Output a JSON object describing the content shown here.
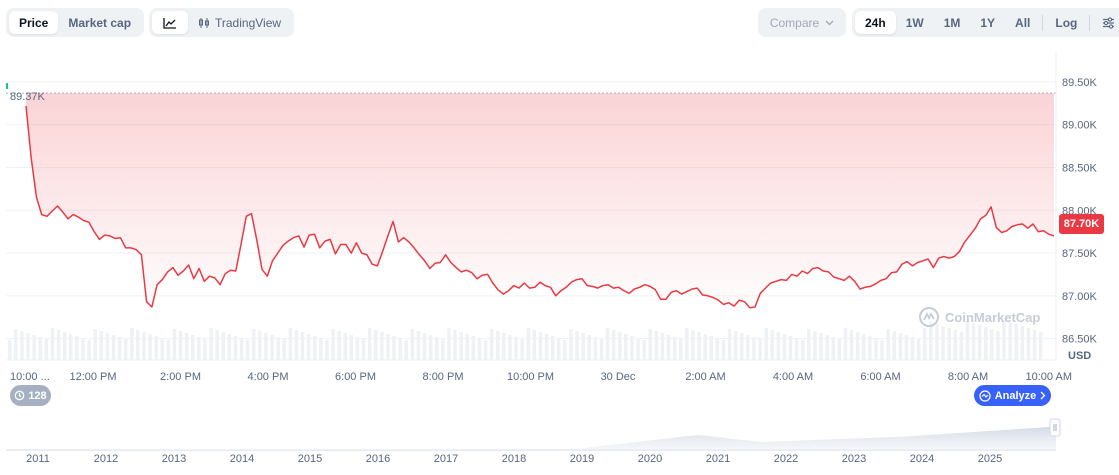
{
  "toolbar": {
    "type_options": [
      {
        "label": "Price",
        "active": true
      },
      {
        "label": "Market cap",
        "active": false
      }
    ],
    "view_options": {
      "line_icon": "line-chart-icon",
      "tradingview_icon": "candlestick-icon",
      "tradingview_label": "TradingView"
    },
    "compare_label": "Compare",
    "ranges": [
      "24h",
      "1W",
      "1M",
      "1Y",
      "All"
    ],
    "active_range": "24h",
    "log_label": "Log",
    "settings_icon": "sliders-icon"
  },
  "chart_data": {
    "type": "area",
    "x_labels": [
      "10:00 ...",
      "12:00 PM",
      "2:00 PM",
      "4:00 PM",
      "6:00 PM",
      "8:00 PM",
      "10:00 PM",
      "30 Dec",
      "2:00 AM",
      "4:00 AM",
      "6:00 AM",
      "8:00 AM",
      "10:00 AM"
    ],
    "y_ticks": [
      "89.50K",
      "89.00K",
      "88.50K",
      "88.00K",
      "87.50K",
      "87.00K",
      "86.50K"
    ],
    "y_tick_values": [
      89500,
      89000,
      88500,
      88000,
      87500,
      87000,
      86500
    ],
    "ylim": [
      86250,
      89850
    ],
    "unit": "USD",
    "open_label": "89.37K",
    "open_value": 89370,
    "current_label": "87.70K",
    "current_value": 87700,
    "series": [
      {
        "color": "#ea3943",
        "values": [
          89220,
          88610,
          88150,
          87950,
          87930,
          87990,
          88050,
          87980,
          87900,
          87950,
          87920,
          87880,
          87860,
          87750,
          87660,
          87710,
          87700,
          87670,
          87680,
          87560,
          87560,
          87540,
          87480,
          86930,
          86870,
          87130,
          87190,
          87280,
          87330,
          87240,
          87290,
          87360,
          87200,
          87320,
          87170,
          87230,
          87210,
          87130,
          87260,
          87300,
          87290,
          87600,
          87930,
          87960,
          87650,
          87310,
          87230,
          87410,
          87500,
          87590,
          87640,
          87680,
          87700,
          87570,
          87710,
          87720,
          87560,
          87640,
          87660,
          87490,
          87600,
          87600,
          87500,
          87620,
          87500,
          87480,
          87370,
          87350,
          87520,
          87700,
          87870,
          87630,
          87680,
          87630,
          87560,
          87480,
          87410,
          87320,
          87380,
          87390,
          87480,
          87390,
          87330,
          87280,
          87300,
          87270,
          87200,
          87240,
          87250,
          87150,
          87070,
          87020,
          87060,
          87120,
          87090,
          87150,
          87090,
          87100,
          87160,
          87120,
          87100,
          87000,
          87060,
          87100,
          87160,
          87190,
          87200,
          87120,
          87110,
          87090,
          87120,
          87130,
          87090,
          87100,
          87060,
          87030,
          87080,
          87100,
          87130,
          87110,
          87070,
          86960,
          86960,
          87040,
          87060,
          87020,
          87050,
          87080,
          87090,
          87010,
          87000,
          86980,
          86950,
          86900,
          86920,
          86880,
          86950,
          86930,
          86860,
          86870,
          87030,
          87090,
          87150,
          87170,
          87190,
          87180,
          87250,
          87230,
          87290,
          87260,
          87320,
          87330,
          87290,
          87280,
          87220,
          87200,
          87180,
          87230,
          87170,
          87080,
          87100,
          87110,
          87140,
          87180,
          87200,
          87270,
          87280,
          87370,
          87400,
          87350,
          87390,
          87410,
          87430,
          87330,
          87440,
          87460,
          87440,
          87460,
          87520,
          87630,
          87710,
          87790,
          87900,
          87940,
          88040,
          87800,
          87740,
          87760,
          87810,
          87830,
          87840,
          87790,
          87840,
          87750,
          87760,
          87720,
          87700
        ]
      }
    ]
  },
  "navigator": {
    "years": [
      "2011",
      "2012",
      "2013",
      "2014",
      "2015",
      "2016",
      "2017",
      "2018",
      "2019",
      "2020",
      "2021",
      "2022",
      "2023",
      "2024",
      "2025"
    ]
  },
  "badges": {
    "history_icon": "history-icon",
    "history_count": "128",
    "analyze_icon": "analyze-icon",
    "analyze_label": "Analyze",
    "analyze_chevron": "chevron-right-icon"
  },
  "watermark": {
    "logo_icon": "coinmarketcap-logo-icon",
    "text": "CoinMarketCap"
  }
}
